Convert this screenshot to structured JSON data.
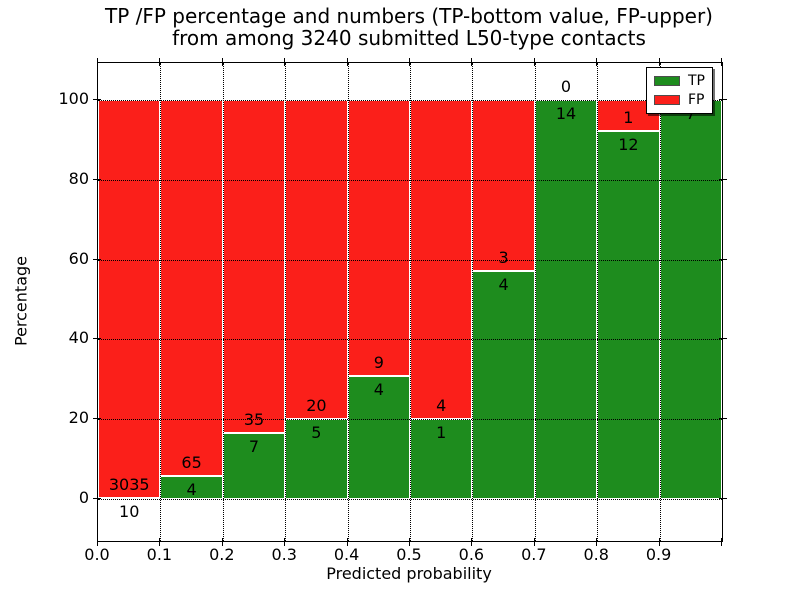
{
  "chart_data": {
    "type": "bar",
    "stacked": true,
    "unit": "percent",
    "title": "TP /FP percentage and numbers (TP-bottom value, FP-upper)\nfrom among 3240 submitted L50-type contacts",
    "title_line1": "TP /FP percentage and numbers (TP-bottom value, FP-upper)",
    "title_line2": "from among 3240 submitted L50-type contacts",
    "xlabel": "Predicted probability",
    "ylabel": "Percentage",
    "total_contacts": 3240,
    "x_tick_labels": [
      "0.0",
      "0.1",
      "0.2",
      "0.3",
      "0.4",
      "0.5",
      "0.6",
      "0.7",
      "0.8",
      "0.9"
    ],
    "y_ticks": [
      0,
      20,
      40,
      60,
      80,
      100
    ],
    "xlim": [
      0.0,
      1.0
    ],
    "ylim": [
      -10.5,
      109.5
    ],
    "bin_width": 0.1,
    "categories": [
      "0.0-0.1",
      "0.1-0.2",
      "0.2-0.3",
      "0.3-0.4",
      "0.4-0.5",
      "0.5-0.6",
      "0.6-0.7",
      "0.7-0.8",
      "0.8-0.9",
      "0.9-1.0"
    ],
    "series": [
      {
        "name": "TP",
        "color": "#1e8c1e",
        "counts": [
          10,
          4,
          7,
          5,
          4,
          1,
          4,
          14,
          12,
          7
        ],
        "labels": [
          "10",
          "4",
          "7",
          "5",
          "4",
          "1",
          "4",
          "14",
          "12",
          "7"
        ],
        "percent": [
          0.33,
          5.8,
          16.67,
          20.0,
          30.77,
          20.0,
          57.14,
          100.0,
          92.31,
          100.0
        ]
      },
      {
        "name": "FP",
        "color": "#fb1f1a",
        "counts": [
          3035,
          65,
          35,
          20,
          9,
          4,
          3,
          0,
          1,
          0
        ],
        "labels": [
          "3035",
          "65",
          "35",
          "20",
          "9",
          "4",
          "3",
          "0",
          "1",
          "0"
        ],
        "percent": [
          99.67,
          94.2,
          83.33,
          80.0,
          69.23,
          80.0,
          42.86,
          0.0,
          7.69,
          0.0
        ]
      }
    ],
    "legend": {
      "position": "upper-right",
      "entries": [
        {
          "label": "TP",
          "color": "#1e8c1e"
        },
        {
          "label": "FP",
          "color": "#fb1f1a"
        }
      ]
    },
    "grid": "dotted",
    "frame_color": "#000000",
    "background_color": "#ffffff"
  }
}
